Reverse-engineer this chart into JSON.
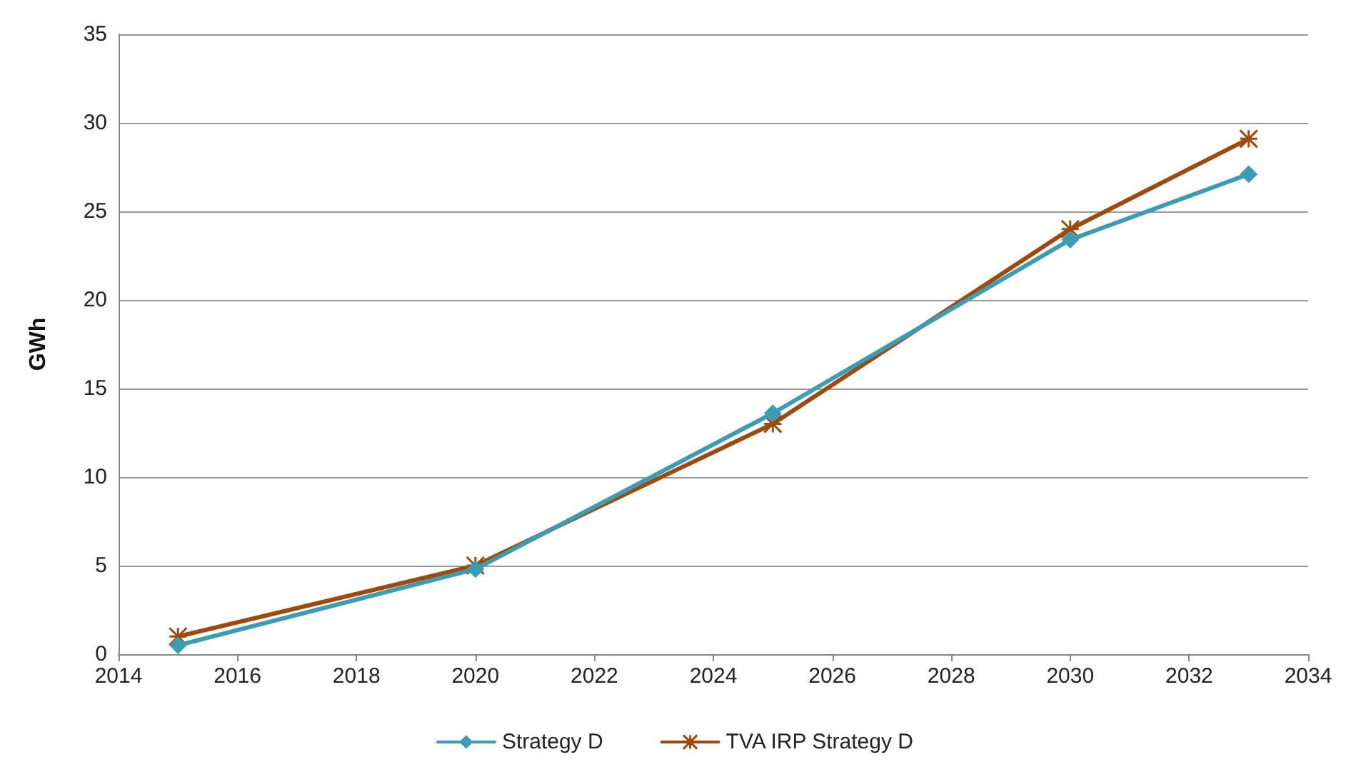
{
  "chart_data": {
    "type": "line",
    "ylabel": "GWh",
    "x": [
      2015,
      2020,
      2025,
      2030,
      2033
    ],
    "series": [
      {
        "name": "Strategy D",
        "color": "#3a9db3",
        "marker": "diamond",
        "values": [
          0.5,
          4.8,
          13.6,
          23.4,
          27.1
        ]
      },
      {
        "name": "TVA IRP Strategy D",
        "color": "#9e4a0c",
        "marker": "cross",
        "values": [
          1.0,
          5.0,
          13.0,
          24.0,
          29.1
        ]
      }
    ],
    "xlim": [
      2014,
      2034
    ],
    "xticks": [
      2014,
      2016,
      2018,
      2020,
      2022,
      2024,
      2026,
      2028,
      2030,
      2032,
      2034
    ],
    "ylim": [
      0,
      35
    ],
    "yticks": [
      0,
      5,
      10,
      15,
      20,
      25,
      30,
      35
    ],
    "grid": "y",
    "legend": "bottom",
    "line_style": "solid"
  }
}
